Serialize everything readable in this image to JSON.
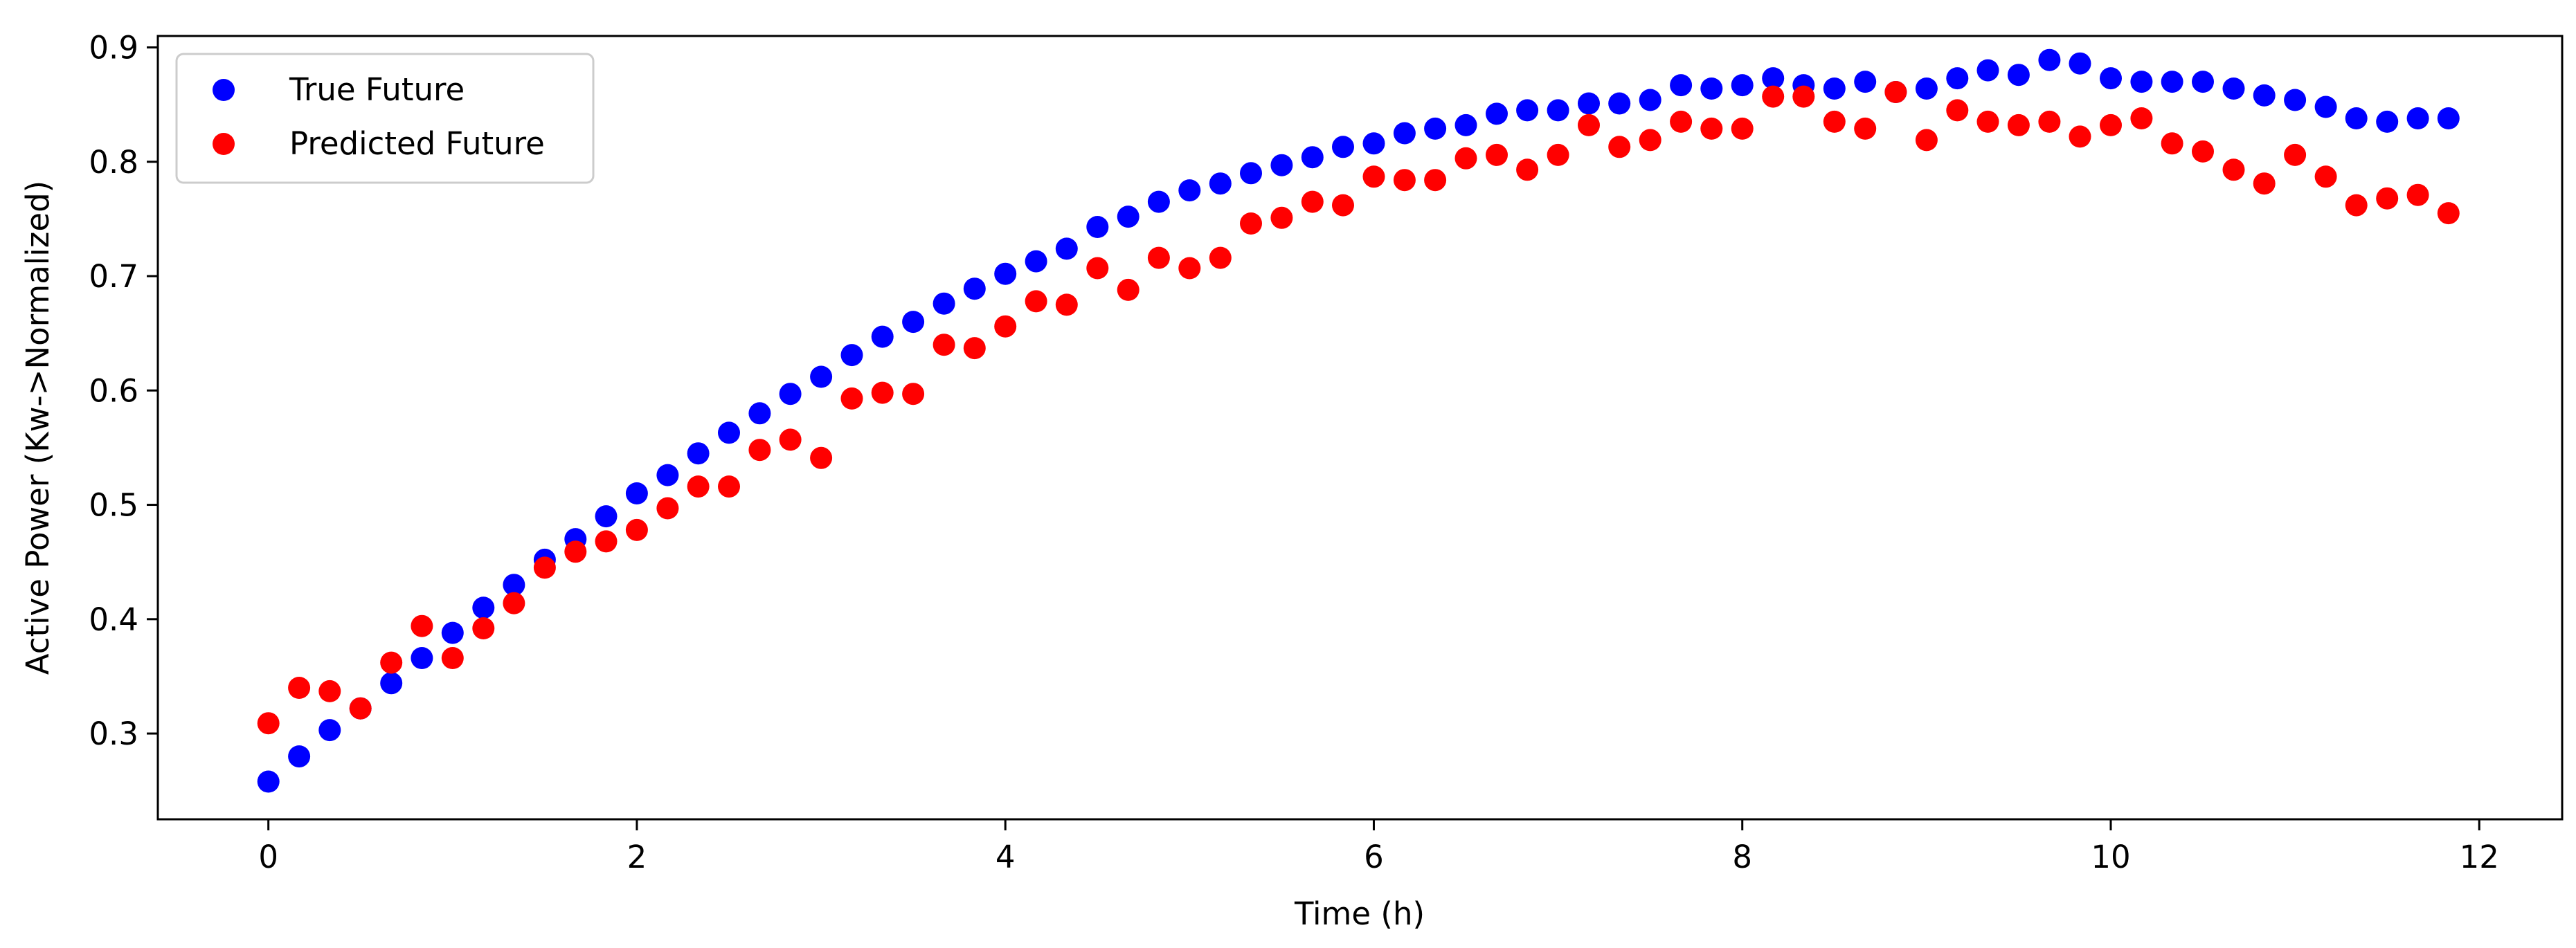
{
  "chart_data": {
    "type": "scatter",
    "title": "",
    "xlabel": "Time (h)",
    "ylabel": "Active Power (Kw->Normalized)",
    "xlim": [
      -0.6,
      12.45
    ],
    "ylim": [
      0.225,
      0.91
    ],
    "xticks": [
      0,
      2,
      4,
      6,
      8,
      10,
      12
    ],
    "yticks": [
      0.3,
      0.4,
      0.5,
      0.6,
      0.7,
      0.8,
      0.9
    ],
    "grid": false,
    "legend_position": "top-left",
    "colors": {
      "true_future": "#0000ff",
      "predicted_future": "#ff0000",
      "axis": "#000000"
    },
    "series": [
      {
        "name": "True Future",
        "color": "#0000ff",
        "x": [
          0,
          0.167,
          0.333,
          0.5,
          0.667,
          0.833,
          1.0,
          1.167,
          1.333,
          1.5,
          1.667,
          1.833,
          2.0,
          2.167,
          2.333,
          2.5,
          2.667,
          2.833,
          3.0,
          3.167,
          3.333,
          3.5,
          3.667,
          3.833,
          4.0,
          4.167,
          4.333,
          4.5,
          4.667,
          4.833,
          5.0,
          5.167,
          5.333,
          5.5,
          5.667,
          5.833,
          6.0,
          6.167,
          6.333,
          6.5,
          6.667,
          6.833,
          7.0,
          7.167,
          7.333,
          7.5,
          7.667,
          7.833,
          8.0,
          8.167,
          8.333,
          8.5,
          8.667,
          8.833,
          9.0,
          9.167,
          9.333,
          9.5,
          9.667,
          9.833,
          10.0,
          10.167,
          10.333,
          10.5,
          10.667,
          10.833,
          11.0,
          11.167,
          11.333,
          11.5,
          11.667,
          11.833
        ],
        "values": [
          0.258,
          0.28,
          0.303,
          0.322,
          0.344,
          0.366,
          0.388,
          0.41,
          0.43,
          0.452,
          0.47,
          0.49,
          0.51,
          0.526,
          0.545,
          0.563,
          0.58,
          0.597,
          0.612,
          0.631,
          0.647,
          0.66,
          0.676,
          0.689,
          0.702,
          0.713,
          0.724,
          0.743,
          0.752,
          0.765,
          0.775,
          0.781,
          0.79,
          0.797,
          0.804,
          0.813,
          0.816,
          0.825,
          0.829,
          0.832,
          0.842,
          0.845,
          0.845,
          0.851,
          0.851,
          0.854,
          0.867,
          0.864,
          0.867,
          0.873,
          0.867,
          0.864,
          0.87,
          0.861,
          0.864,
          0.873,
          0.88,
          0.876,
          0.889,
          0.886,
          0.873,
          0.87,
          0.87,
          0.87,
          0.864,
          0.858,
          0.854,
          0.848,
          0.838,
          0.835,
          0.838,
          0.838
        ]
      },
      {
        "name": "Predicted Future",
        "color": "#ff0000",
        "x": [
          0,
          0.167,
          0.333,
          0.5,
          0.667,
          0.833,
          1.0,
          1.167,
          1.333,
          1.5,
          1.667,
          1.833,
          2.0,
          2.167,
          2.333,
          2.5,
          2.667,
          2.833,
          3.0,
          3.167,
          3.333,
          3.5,
          3.667,
          3.833,
          4.0,
          4.167,
          4.333,
          4.5,
          4.667,
          4.833,
          5.0,
          5.167,
          5.333,
          5.5,
          5.667,
          5.833,
          6.0,
          6.167,
          6.333,
          6.5,
          6.667,
          6.833,
          7.0,
          7.167,
          7.333,
          7.5,
          7.667,
          7.833,
          8.0,
          8.167,
          8.333,
          8.5,
          8.667,
          8.833,
          9.0,
          9.167,
          9.333,
          9.5,
          9.667,
          9.833,
          10.0,
          10.167,
          10.333,
          10.5,
          10.667,
          10.833,
          11.0,
          11.167,
          11.333,
          11.5,
          11.667,
          11.833
        ],
        "values": [
          0.309,
          0.34,
          0.337,
          0.322,
          0.362,
          0.394,
          0.366,
          0.392,
          0.414,
          0.445,
          0.459,
          0.468,
          0.478,
          0.497,
          0.516,
          0.516,
          0.548,
          0.557,
          0.541,
          0.593,
          0.598,
          0.597,
          0.64,
          0.637,
          0.656,
          0.678,
          0.675,
          0.707,
          0.688,
          0.716,
          0.707,
          0.716,
          0.746,
          0.751,
          0.765,
          0.762,
          0.787,
          0.784,
          0.784,
          0.803,
          0.806,
          0.793,
          0.806,
          0.832,
          0.813,
          0.819,
          0.835,
          0.829,
          0.829,
          0.857,
          0.857,
          0.835,
          0.829,
          0.861,
          0.819,
          0.845,
          0.835,
          0.832,
          0.835,
          0.822,
          0.832,
          0.838,
          0.816,
          0.809,
          0.793,
          0.781,
          0.806,
          0.787,
          0.762,
          0.768,
          0.771,
          0.755
        ]
      }
    ]
  }
}
